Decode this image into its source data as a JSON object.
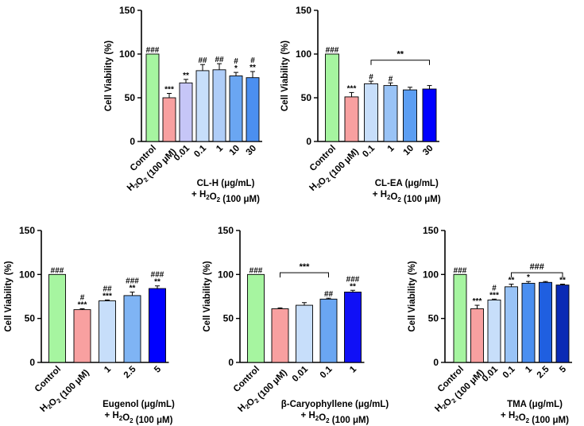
{
  "chart_data": [
    {
      "type": "bar",
      "ylabel": "Cell Viability (%)",
      "ylim": [
        0,
        150
      ],
      "yticks": [
        0,
        50,
        100,
        150
      ],
      "xlabel_lines": [
        "CL-H (μg/mL)",
        "+ H₂O₂ (100 μM)"
      ],
      "categories": [
        "Control",
        "H₂O₂ (100 μM)",
        "0.01",
        "0.1",
        "1",
        "10",
        "30"
      ],
      "values": [
        100,
        50,
        67,
        81,
        82,
        75,
        73
      ],
      "errors": [
        0,
        5,
        4,
        7,
        7,
        4,
        7
      ],
      "colors": [
        "#a6f5a0",
        "#f8a0a0",
        "#c6c6f7",
        "#c7defa",
        "#afcdf8",
        "#6aa6f2",
        "#4b8ff0"
      ],
      "annotations": [
        [
          "###"
        ],
        [
          "***"
        ],
        [
          "**"
        ],
        [
          "##"
        ],
        [
          "##"
        ],
        [
          "#",
          "*"
        ],
        [
          "#",
          "**"
        ]
      ],
      "bracket": null
    },
    {
      "type": "bar",
      "ylabel": "Cell Viability (%)",
      "ylim": [
        0,
        150
      ],
      "yticks": [
        0,
        50,
        100,
        150
      ],
      "xlabel_lines": [
        "CL-EA (μg/mL)",
        "+ H₂O₂ (100 μM)"
      ],
      "categories": [
        "Control",
        "H₂O₂ (100 μM)",
        "0.1",
        "1",
        "10",
        "30"
      ],
      "values": [
        100,
        51,
        66,
        64,
        59,
        60
      ],
      "errors": [
        0,
        5,
        3,
        3,
        3,
        4
      ],
      "colors": [
        "#a6f5a0",
        "#f8a0a0",
        "#c7defa",
        "#99c3f6",
        "#5c9ef2",
        "#0000ff"
      ],
      "annotations": [
        [
          "###"
        ],
        [
          "***"
        ],
        [
          "#"
        ],
        [
          "#"
        ],
        [],
        []
      ],
      "bracket": {
        "from": 2,
        "to": 5,
        "level": 93,
        "label": "**"
      }
    },
    {
      "type": "bar",
      "ylabel": "Cell Viability (%)",
      "ylim": [
        0,
        150
      ],
      "yticks": [
        0,
        50,
        100,
        150
      ],
      "xlabel_lines": [
        "Eugenol (μg/mL)",
        "+ H₂O₂ (100 μM)"
      ],
      "categories": [
        "Control",
        "H₂O₂ (100 μM)",
        "1",
        "2.5",
        "5"
      ],
      "values": [
        100,
        60,
        70,
        76,
        84
      ],
      "errors": [
        0,
        1,
        1,
        4,
        3
      ],
      "colors": [
        "#a6f5a0",
        "#f8a0a0",
        "#c7defa",
        "#7fb4f4",
        "#0000ff"
      ],
      "annotations": [
        [
          "###"
        ],
        [
          "#",
          "***"
        ],
        [
          "##",
          "***"
        ],
        [
          "###",
          "**"
        ],
        [
          "###",
          "**"
        ]
      ],
      "bracket": null
    },
    {
      "type": "bar",
      "ylabel": "Cell Viability (%)",
      "ylim": [
        0,
        150
      ],
      "yticks": [
        0,
        50,
        100,
        150
      ],
      "xlabel_lines": [
        "β-Caryophyllene (μg/mL)",
        "+ H₂O₂ (100 μM)"
      ],
      "categories": [
        "Control",
        "H₂O₂ (100 μM)",
        "0.01",
        "0.1",
        "1"
      ],
      "values": [
        100,
        61,
        65,
        72,
        80
      ],
      "errors": [
        0,
        1,
        3,
        1,
        2
      ],
      "colors": [
        "#a6f5a0",
        "#f8a0a0",
        "#c7defa",
        "#6aa6f2",
        "#1010f6"
      ],
      "annotations": [
        [
          "###"
        ],
        [],
        [],
        [
          "##"
        ],
        [
          "###",
          "**"
        ]
      ],
      "bracket": {
        "from": 1,
        "to": 3,
        "level": 102,
        "label": "***"
      }
    },
    {
      "type": "bar",
      "ylabel": "Cell Viability (%)",
      "ylim": [
        0,
        150
      ],
      "yticks": [
        0,
        50,
        100,
        150
      ],
      "xlabel_lines": [
        "TMA (μg/mL)",
        "+ H₂O₂ (100 μM)"
      ],
      "categories": [
        "Control",
        "H₂O₂ (100 μM)",
        "0.01",
        "0.1",
        "1",
        "2.5",
        "5"
      ],
      "values": [
        100,
        61,
        71,
        86,
        90,
        91,
        88
      ],
      "errors": [
        0,
        4,
        1,
        3,
        2,
        1,
        1
      ],
      "colors": [
        "#a6f5a0",
        "#f8a0a0",
        "#c7defa",
        "#99c3f6",
        "#4b8ff0",
        "#1f5fe0",
        "#0a2ab5"
      ],
      "annotations": [
        [
          "###"
        ],
        [
          "***"
        ],
        [
          "#",
          "***"
        ],
        [
          "**"
        ],
        [
          "*"
        ],
        [],
        [
          "**"
        ]
      ],
      "bracket": {
        "from": 3,
        "to": 6,
        "level": 102,
        "label": "###"
      }
    }
  ]
}
